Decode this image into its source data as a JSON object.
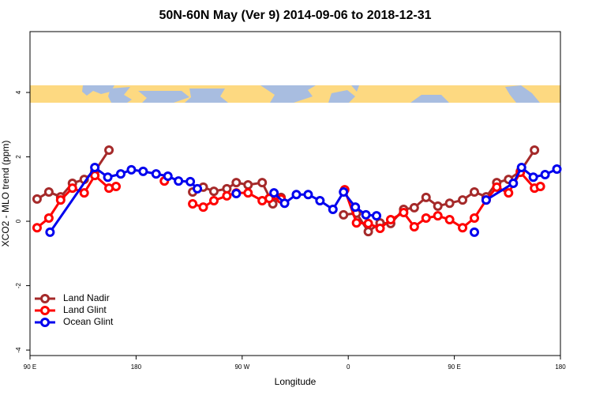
{
  "chart_data": {
    "type": "line",
    "title": "50N-60N May (Ver 9)   2014-09-06 to 2018-12-31",
    "x_label": "Longitude",
    "y_label": "XCO2 - MLO trend (ppm)",
    "xlim": [
      90,
      540
    ],
    "ylim": [
      -4.17,
      5.89
    ],
    "xticks": [
      {
        "value": 90,
        "label": "90 E"
      },
      180,
      {
        "value": 270,
        "label": "90 W"
      },
      {
        "value": 360,
        "label": "0"
      },
      {
        "value": 450,
        "label": "90 E"
      },
      {
        "value": 540,
        "label": "180"
      }
    ],
    "yticks": [
      -4,
      -2,
      0,
      2,
      4
    ],
    "legend": "bottom-left",
    "series": [
      {
        "name": "Land Nadir",
        "color": "#a52a2a",
        "x": [
          96,
          106,
          116,
          126,
          136,
          145,
          157,
          null,
          228,
          237,
          246,
          257,
          265,
          275,
          287,
          296,
          303,
          null,
          356,
          367,
          377,
          387,
          396,
          407,
          416,
          426,
          436,
          446,
          457,
          467,
          477,
          486,
          496,
          506,
          518
        ],
        "values": [
          0.69,
          0.91,
          0.76,
          1.18,
          1.3,
          1.55,
          2.21,
          null,
          0.91,
          1.06,
          0.93,
          1.01,
          1.2,
          1.13,
          1.2,
          0.54,
          0.74,
          null,
          0.2,
          0.25,
          -0.32,
          -0.05,
          -0.07,
          0.37,
          0.42,
          0.74,
          0.47,
          0.56,
          0.66,
          0.91,
          0.76,
          1.2,
          1.3,
          1.55,
          2.21
        ]
      },
      {
        "name": "Land Glint",
        "color": "#ff0000",
        "x": [
          96,
          106,
          116,
          126,
          136,
          145,
          157,
          163,
          null,
          204,
          null,
          228,
          237,
          246,
          257,
          265,
          275,
          287,
          293,
          303,
          null,
          357,
          367,
          377,
          387,
          396,
          407,
          416,
          426,
          436,
          446,
          457,
          467,
          477,
          486,
          496,
          506,
          518,
          523
        ],
        "values": [
          -0.2,
          0.1,
          0.66,
          1.03,
          0.88,
          1.42,
          1.03,
          1.08,
          null,
          1.25,
          null,
          0.54,
          0.44,
          0.64,
          0.79,
          0.88,
          0.88,
          0.64,
          0.71,
          0.69,
          null,
          0.98,
          -0.05,
          -0.07,
          -0.22,
          0.05,
          0.27,
          -0.17,
          0.1,
          0.17,
          0.05,
          -0.2,
          0.1,
          0.66,
          1.06,
          0.88,
          1.52,
          1.03,
          1.08
        ]
      },
      {
        "name": "Ocean Glint",
        "color": "#0000ee",
        "x": [
          107,
          145,
          156,
          167,
          176,
          186,
          197,
          207,
          216,
          226,
          232,
          null,
          265,
          null,
          297,
          306,
          316,
          326,
          336,
          347,
          356,
          366,
          375,
          384,
          null,
          467,
          null,
          477,
          500,
          507,
          517,
          527,
          537
        ],
        "values": [
          -0.34,
          1.67,
          1.37,
          1.47,
          1.6,
          1.55,
          1.47,
          1.4,
          1.25,
          1.23,
          1.01,
          null,
          0.86,
          null,
          0.88,
          0.56,
          0.83,
          0.83,
          0.64,
          0.37,
          0.91,
          0.44,
          0.2,
          0.17,
          null,
          -0.34,
          null,
          0.66,
          1.18,
          1.67,
          1.37,
          1.45,
          1.62
        ]
      }
    ]
  }
}
